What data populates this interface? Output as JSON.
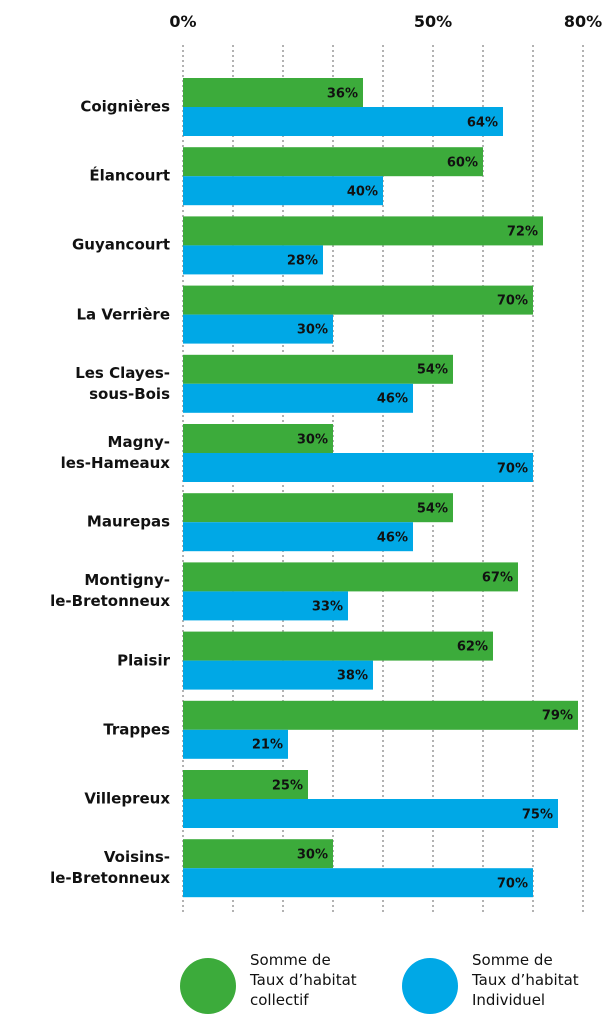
{
  "chart_data": {
    "type": "hbar",
    "categories": [
      "Coignières",
      "Élancourt",
      "Guyancourt",
      "La Verrière",
      "Les Clayes-\nsous-Bois",
      "Magny-\nles-Hameaux",
      "Maurepas",
      "Montigny-\nle-Bretonneux",
      "Plaisir",
      "Trappes",
      "Villepreux",
      "Voisins-\nle-Bretonneux"
    ],
    "series": [
      {
        "name": "Somme de\nTaux d’habitat\ncollectif",
        "color": "#3cab3b",
        "values": [
          36,
          60,
          72,
          70,
          54,
          30,
          54,
          67,
          62,
          79,
          25,
          30
        ],
        "value_labels": [
          "36%",
          "60%",
          "72%",
          "70%",
          "54%",
          "30%",
          "54%",
          "67%",
          "62%",
          "79%",
          "25%",
          "30%"
        ]
      },
      {
        "name": "Somme de\nTaux d’habitat\nIndividuel",
        "color": "#00a8e6",
        "values": [
          64,
          40,
          28,
          30,
          46,
          70,
          46,
          33,
          38,
          21,
          75,
          70
        ],
        "value_labels": [
          "64%",
          "40%",
          "28%",
          "30%",
          "46%",
          "70%",
          "46%",
          "33%",
          "38%",
          "21%",
          "75%",
          "70%"
        ]
      }
    ],
    "xlim": [
      0,
      80
    ],
    "xticks": [
      {
        "value": 0,
        "label": "0%"
      },
      {
        "value": 50,
        "label": "50%"
      },
      {
        "value": 80,
        "label": "80%"
      }
    ],
    "grid_values": [
      0,
      10,
      20,
      30,
      40,
      50,
      60,
      70,
      80
    ],
    "grid": true,
    "legend": "bottom"
  }
}
